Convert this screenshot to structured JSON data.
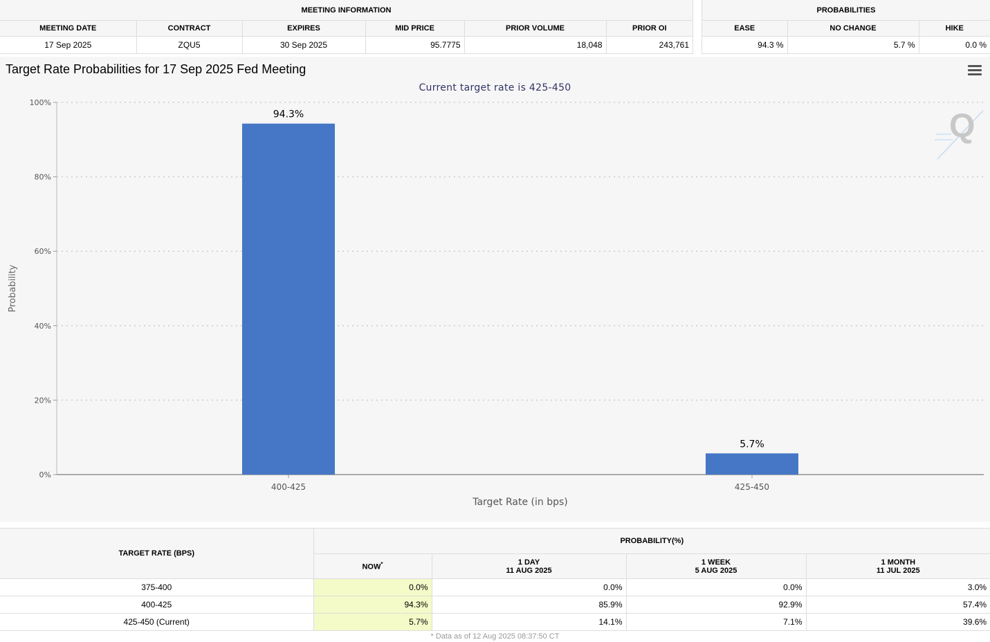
{
  "meeting_info": {
    "group_title": "MEETING INFORMATION",
    "headers": [
      "MEETING DATE",
      "CONTRACT",
      "EXPIRES",
      "MID PRICE",
      "PRIOR VOLUME",
      "PRIOR OI"
    ],
    "row": [
      "17 Sep 2025",
      "ZQU5",
      "30 Sep 2025",
      "95.7775",
      "18,048",
      "243,761"
    ]
  },
  "probabilities": {
    "group_title": "PROBABILITIES",
    "headers": [
      "EASE",
      "NO CHANGE",
      "HIKE"
    ],
    "row": [
      "94.3 %",
      "5.7 %",
      "0.0 %"
    ]
  },
  "chart": {
    "menu_icon": "hamburger-menu-icon",
    "watermark_icon": "q-logo-icon",
    "colors": {
      "bar": "#4677c6",
      "background": "#f6f6f6",
      "subtitle": "#333366"
    }
  },
  "chart_data": {
    "type": "bar",
    "title": "Target Rate Probabilities for 17 Sep 2025 Fed Meeting",
    "subtitle": "Current target rate is 425-450",
    "xlabel": "Target Rate (in bps)",
    "ylabel": "Probability",
    "categories": [
      "400-425",
      "425-450"
    ],
    "values": [
      94.3,
      5.7
    ],
    "data_labels": [
      "94.3%",
      "5.7%"
    ],
    "ylim": [
      0,
      100
    ],
    "yticks": [
      "0%",
      "20%",
      "40%",
      "60%",
      "80%",
      "100%"
    ],
    "grid": true
  },
  "history_table": {
    "rate_header": "TARGET RATE (BPS)",
    "group_header": "PROBABILITY(%)",
    "now_label": "NOW",
    "now_marker": "*",
    "columns": [
      {
        "line1": "1 DAY",
        "line2": "11 AUG 2025"
      },
      {
        "line1": "1 WEEK",
        "line2": "5 AUG 2025"
      },
      {
        "line1": "1 MONTH",
        "line2": "11 JUL 2025"
      }
    ],
    "rows": [
      {
        "rate": "375-400",
        "now": "0.0%",
        "d1": "0.0%",
        "w1": "0.0%",
        "m1": "3.0%"
      },
      {
        "rate": "400-425",
        "now": "94.3%",
        "d1": "85.9%",
        "w1": "92.9%",
        "m1": "57.4%"
      },
      {
        "rate": "425-450 (Current)",
        "now": "5.7%",
        "d1": "14.1%",
        "w1": "7.1%",
        "m1": "39.6%"
      }
    ],
    "footnote": "* Data as of 12 Aug 2025 08:37:50 CT"
  }
}
